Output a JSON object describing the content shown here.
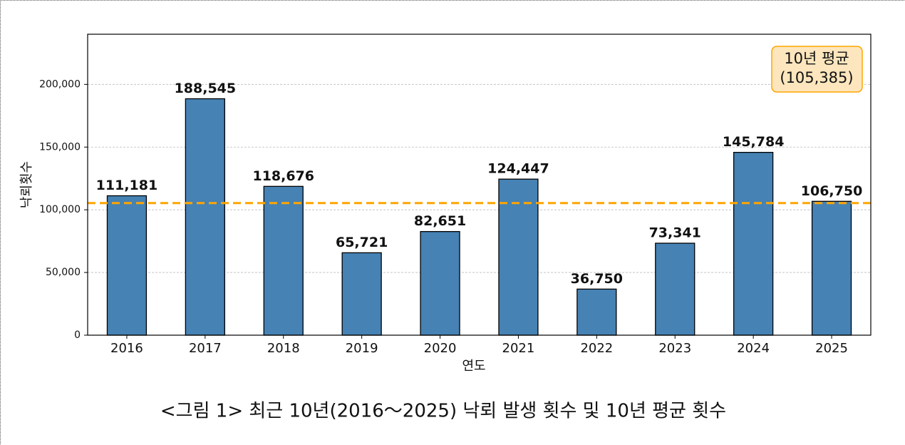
{
  "chart_data": {
    "type": "bar",
    "categories": [
      "2016",
      "2017",
      "2018",
      "2019",
      "2020",
      "2021",
      "2022",
      "2023",
      "2024",
      "2025"
    ],
    "values": [
      111181,
      188545,
      118676,
      65721,
      82651,
      124447,
      36750,
      73341,
      145784,
      106750
    ],
    "value_labels": [
      "111,181",
      "188,545",
      "118,676",
      "65,721",
      "82,651",
      "124,447",
      "36,750",
      "73,341",
      "145,784",
      "106,750"
    ],
    "color": "#4682b4",
    "edge_color": "#000000",
    "ylim": [
      0,
      240000
    ],
    "yticks": [
      0,
      {
        "value": 50000,
        "label": "50,000"
      },
      {
        "value": 100000,
        "label": "100,000"
      },
      {
        "value": 150000,
        "label": "150,000"
      },
      {
        "value": 200000,
        "label": "200,000"
      }
    ],
    "grid": true,
    "xlabel": "연도",
    "ylabel": "낙뢰횟수",
    "average": {
      "value": 105385,
      "label": "(105,385)",
      "name": "10년 평균",
      "color": "#ffa500"
    },
    "caption": "<그림 1> 최근 10년(2016～2025) 낙뢰 발생 횟수 및 10년 평균 횟수"
  }
}
